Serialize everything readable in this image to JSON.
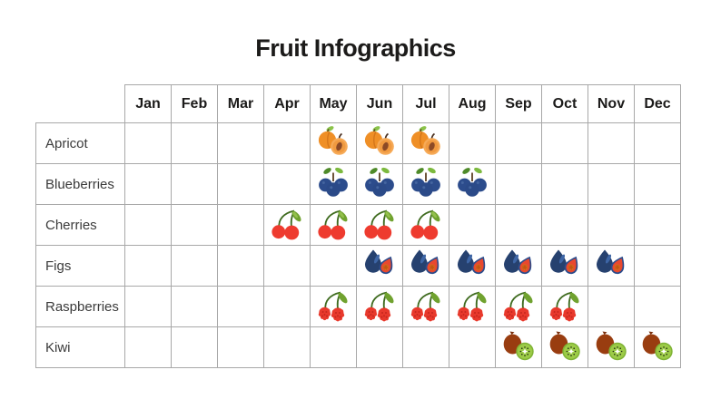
{
  "page": {
    "title": "Fruit Infographics",
    "title_color": "#1c1b1a",
    "background_color": "#ffffff",
    "grid_color": "#a8a8a8"
  },
  "table": {
    "months": [
      "Jan",
      "Feb",
      "Mar",
      "Apr",
      "May",
      "Jun",
      "Jul",
      "Aug",
      "Sep",
      "Oct",
      "Nov",
      "Dec"
    ],
    "rows": [
      {
        "label": "Apricot",
        "icon": "apricot-icon",
        "in_season_months": [
          "May",
          "Jun",
          "Jul"
        ]
      },
      {
        "label": "Blueberries",
        "icon": "blueberries-icon",
        "in_season_months": [
          "May",
          "Jun",
          "Jul",
          "Aug"
        ]
      },
      {
        "label": "Cherries",
        "icon": "cherries-icon",
        "in_season_months": [
          "Apr",
          "May",
          "Jun",
          "Jul"
        ]
      },
      {
        "label": "Figs",
        "icon": "figs-icon",
        "in_season_months": [
          "Jun",
          "Jul",
          "Aug",
          "Sep",
          "Oct",
          "Nov"
        ]
      },
      {
        "label": "Raspberries",
        "icon": "raspberries-icon",
        "in_season_months": [
          "May",
          "Jun",
          "Jul",
          "Aug",
          "Sep",
          "Oct"
        ]
      },
      {
        "label": "Kiwi",
        "icon": "kiwi-icon",
        "in_season_months": [
          "Sep",
          "Oct",
          "Nov",
          "Dec"
        ]
      }
    ]
  },
  "fruit_colors": {
    "apricot_orange": "#EF8F26",
    "apricot_half": "#F6AA57",
    "apricot_pit": "#8C4A26",
    "blueberry_navy": "#2C4C8C",
    "cherry_red": "#EE3B2F",
    "fig_navy": "#26416F",
    "fig_flesh_red": "#E9482F",
    "raspberry_red": "#E8392C",
    "kiwi_skin_brown": "#993D10",
    "kiwi_flesh_green": "#9CCB47",
    "leaf_dark_green": "#4E8A28",
    "leaf_light_green": "#7CB93E"
  },
  "chart_data": {
    "type": "table",
    "title": "Fruit Infographics",
    "columns": [
      "Jan",
      "Feb",
      "Mar",
      "Apr",
      "May",
      "Jun",
      "Jul",
      "Aug",
      "Sep",
      "Oct",
      "Nov",
      "Dec"
    ],
    "rows": [
      "Apricot",
      "Blueberries",
      "Cherries",
      "Figs",
      "Raspberries",
      "Kiwi"
    ],
    "values": [
      [
        0,
        0,
        0,
        0,
        1,
        1,
        1,
        0,
        0,
        0,
        0,
        0
      ],
      [
        0,
        0,
        0,
        0,
        1,
        1,
        1,
        1,
        0,
        0,
        0,
        0
      ],
      [
        0,
        0,
        0,
        1,
        1,
        1,
        1,
        0,
        0,
        0,
        0,
        0
      ],
      [
        0,
        0,
        0,
        0,
        0,
        1,
        1,
        1,
        1,
        1,
        1,
        0
      ],
      [
        0,
        0,
        0,
        0,
        1,
        1,
        1,
        1,
        1,
        1,
        0,
        0
      ],
      [
        0,
        0,
        0,
        0,
        0,
        0,
        0,
        0,
        1,
        1,
        1,
        1
      ]
    ],
    "value_meaning": "1 = fruit icon shown (in season), 0 = empty cell",
    "legend_position": "none",
    "grid": true
  }
}
